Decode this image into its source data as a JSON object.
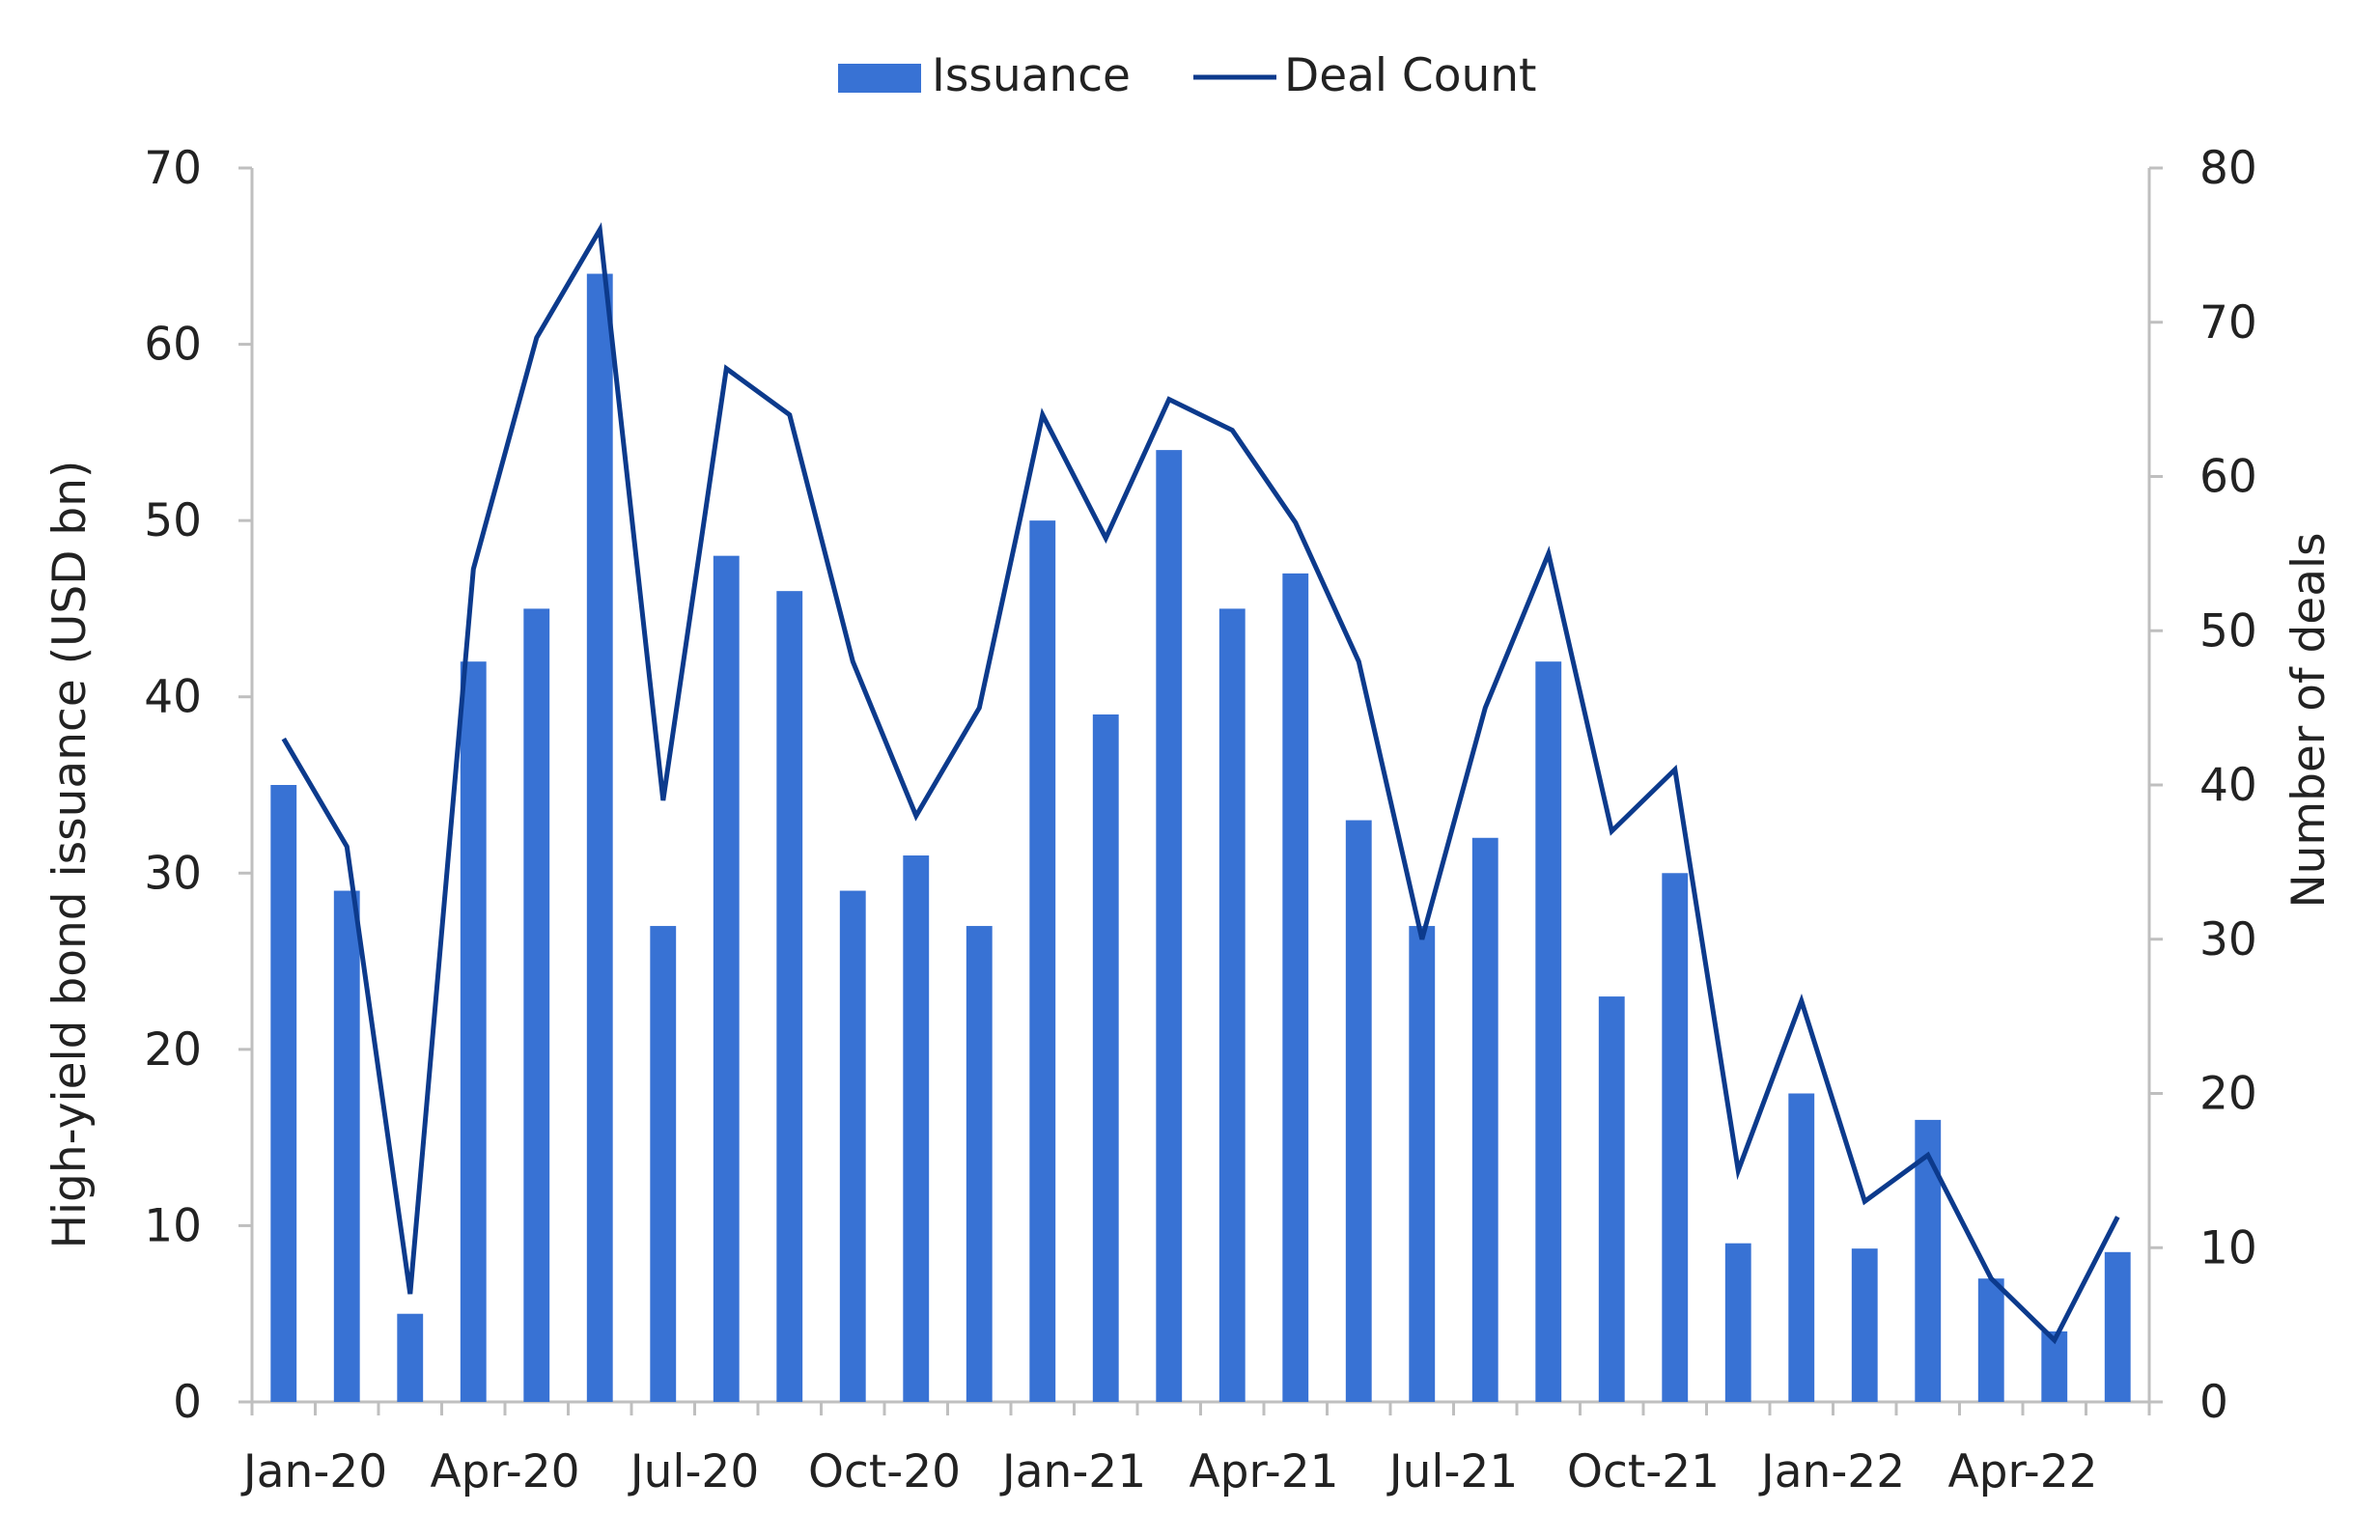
{
  "chart_data": {
    "type": "bar",
    "categories": [
      "Jan-20",
      "Feb-20",
      "Mar-20",
      "Apr-20",
      "May-20",
      "Jun-20",
      "Jul-20",
      "Aug-20",
      "Sep-20",
      "Oct-20",
      "Nov-20",
      "Dec-20",
      "Jan-21",
      "Feb-21",
      "Mar-21",
      "Apr-21",
      "May-21",
      "Jun-21",
      "Jul-21",
      "Aug-21",
      "Sep-21",
      "Oct-21",
      "Nov-21",
      "Dec-21",
      "Jan-22",
      "Feb-22",
      "Mar-22",
      "Apr-22",
      "May-22",
      "Jun-22"
    ],
    "x_tick_labels": [
      "Jan-20",
      "Apr-20",
      "Jul-20",
      "Oct-20",
      "Jan-21",
      "Apr-21",
      "Jul-21",
      "Oct-21",
      "Jan-22",
      "Apr-22"
    ],
    "series": [
      {
        "name": "Issuance",
        "kind": "bar",
        "axis": "left",
        "color": "#3872d4",
        "values": [
          35,
          29,
          5,
          42,
          45,
          64,
          27,
          48,
          46,
          29,
          31,
          27,
          50,
          39,
          54,
          45,
          47,
          33,
          27,
          32,
          42,
          23,
          30,
          9,
          17.5,
          8.7,
          16,
          7,
          4,
          8.5
        ]
      },
      {
        "name": "Deal Count",
        "kind": "line",
        "axis": "right",
        "color": "#0c3a8c",
        "values": [
          43,
          36,
          7,
          54,
          69,
          76,
          39,
          67,
          64,
          48,
          38,
          45,
          64,
          56,
          65,
          63,
          57,
          48,
          30,
          45,
          55,
          37,
          41,
          15,
          26,
          13,
          16,
          8,
          4,
          12
        ]
      }
    ],
    "ylabel": "High-yield bond issuance (USD bn)",
    "y2label": "Number of deals",
    "ylim": [
      0,
      70
    ],
    "y2lim": [
      0,
      80
    ],
    "y_ticks": [
      0,
      10,
      20,
      30,
      40,
      50,
      60,
      70
    ],
    "y2_ticks": [
      0,
      10,
      20,
      30,
      40,
      50,
      60,
      70,
      80
    ],
    "legend_position": "top-center",
    "grid": false
  }
}
